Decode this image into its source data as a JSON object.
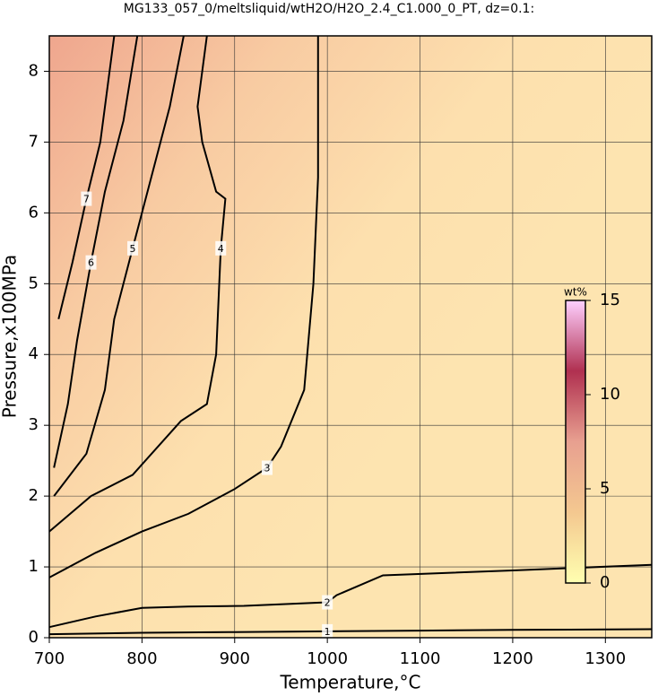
{
  "chart_data": {
    "type": "contour",
    "title": "MG133_057_0/meltsliquid/wtH2O/H2O_2.4_C1.000_0_PT, dz=0.1:",
    "xlabel": "Temperature,°C",
    "ylabel": "Pressure,x100MPa",
    "xlim": [
      700,
      1350
    ],
    "ylim": [
      0,
      8.5
    ],
    "xticks": [
      700,
      800,
      900,
      1000,
      1100,
      1200,
      1300
    ],
    "yticks": [
      0,
      1,
      2,
      3,
      4,
      5,
      6,
      7,
      8
    ],
    "grid": true,
    "contours": [
      {
        "level": 1,
        "x": [
          700,
          800,
          900,
          1000,
          1100,
          1200,
          1350
        ],
        "y": [
          0.05,
          0.07,
          0.08,
          0.09,
          0.1,
          0.11,
          0.12
        ]
      },
      {
        "level": 2,
        "x": [
          700,
          750,
          800,
          850,
          910,
          1000,
          1010,
          1060,
          1200,
          1350
        ],
        "y": [
          0.15,
          0.3,
          0.42,
          0.44,
          0.45,
          0.5,
          0.6,
          0.88,
          0.95,
          1.03
        ]
      },
      {
        "level": 3,
        "x": [
          700,
          750,
          800,
          850,
          900,
          935,
          950,
          975,
          985,
          990,
          990
        ],
        "y": [
          0.85,
          1.2,
          1.5,
          1.75,
          2.1,
          2.4,
          2.7,
          3.5,
          5.0,
          6.5,
          8.5
        ]
      },
      {
        "level": 4,
        "x": [
          700,
          745,
          790,
          842,
          870,
          880,
          885,
          890,
          880,
          865,
          860,
          870
        ],
        "y": [
          1.5,
          2.0,
          2.3,
          3.06,
          3.3,
          4.0,
          5.5,
          6.2,
          6.3,
          7.0,
          7.5,
          8.5
        ]
      },
      {
        "level": 5,
        "x": [
          705,
          740,
          760,
          770,
          790,
          810,
          830,
          845
        ],
        "y": [
          2.0,
          2.6,
          3.5,
          4.5,
          5.5,
          6.5,
          7.5,
          8.5
        ]
      },
      {
        "level": 6,
        "x": [
          705,
          720,
          730,
          745,
          760,
          780,
          795
        ],
        "y": [
          2.4,
          3.3,
          4.2,
          5.3,
          6.3,
          7.3,
          8.5
        ]
      },
      {
        "level": 7,
        "x": [
          710,
          725,
          740,
          755,
          770
        ],
        "y": [
          4.5,
          5.3,
          6.2,
          7.0,
          8.5
        ]
      }
    ],
    "colorbar": {
      "label": "wt%",
      "clim": [
        0,
        15
      ],
      "ticks": [
        0,
        5,
        10,
        15
      ],
      "colors": [
        "#ffffb0",
        "#f4c890",
        "#e8a090",
        "#b03050",
        "#ffd0ff"
      ]
    }
  }
}
